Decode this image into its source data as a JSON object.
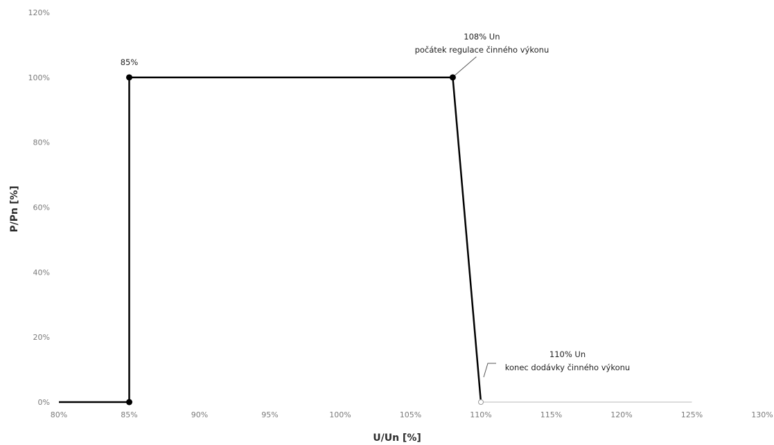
{
  "chart_data": {
    "type": "line",
    "title": "",
    "xlabel": "U/Un [%]",
    "ylabel": "P/Pn [%]",
    "xlim": [
      80,
      130
    ],
    "ylim": [
      0,
      120
    ],
    "x_ticks": [
      80,
      85,
      90,
      95,
      100,
      105,
      110,
      115,
      120,
      125,
      130
    ],
    "x_tick_labels": [
      "80%",
      "85%",
      "90%",
      "95%",
      "100%",
      "105%",
      "110%",
      "115%",
      "120%",
      "125%",
      "130%"
    ],
    "y_ticks": [
      0,
      20,
      40,
      60,
      80,
      100,
      120
    ],
    "y_tick_labels": [
      "0%",
      "20%",
      "40%",
      "60%",
      "80%",
      "100%",
      "120%"
    ],
    "grid": false,
    "legend": "none",
    "series": [
      {
        "x": [
          80,
          85,
          85,
          108,
          110
        ],
        "y": [
          0,
          0,
          100,
          100,
          0
        ],
        "color": "#000000"
      },
      {
        "x": [
          110,
          125
        ],
        "y": [
          0,
          0
        ],
        "color": "#c8c8c8"
      }
    ],
    "markers": [
      {
        "x": 85,
        "y": 0
      },
      {
        "x": 85,
        "y": 100
      },
      {
        "x": 108,
        "y": 100
      },
      {
        "x": 110,
        "y": 0,
        "hollow": true
      }
    ],
    "annotations": {
      "point_85": "85%",
      "a108_line1": "108% Un",
      "a108_line2": "počátek regulace činného výkonu",
      "a110_line1": "110% Un",
      "a110_line2": "konec dodávky činného výkonu"
    }
  }
}
